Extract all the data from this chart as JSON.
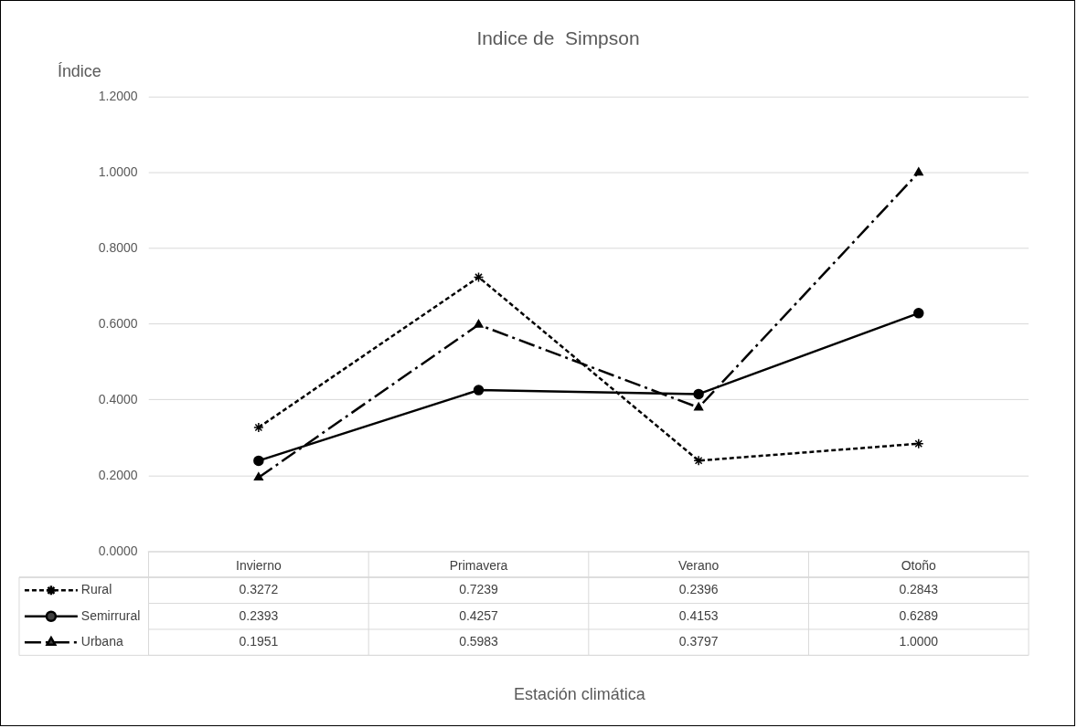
{
  "chart_data": {
    "type": "line",
    "title": "Indice de  Simpson",
    "ylabel": "Índice",
    "annotations": [
      "Estación climática"
    ],
    "categories": [
      "Invierno",
      "Primavera",
      "Verano",
      "Otoño"
    ],
    "series": [
      {
        "name": "Rural",
        "color": "#000000",
        "marker": "cross",
        "line_style": "dotted",
        "values": [
          0.3272,
          0.7239,
          0.2396,
          0.2843
        ],
        "value_labels": [
          "0.3272",
          "0.7239",
          "0.2396",
          "0.2843"
        ]
      },
      {
        "name": "Semirrural",
        "color": "#000000",
        "marker": "circle",
        "line_style": "solid",
        "values": [
          0.2393,
          0.4257,
          0.4153,
          0.6289
        ],
        "value_labels": [
          "0.2393",
          "0.4257",
          "0.4153",
          "0.6289"
        ]
      },
      {
        "name": "Urbana",
        "color": "#000000",
        "marker": "triangle",
        "line_style": "dashed",
        "values": [
          0.1951,
          0.5983,
          0.3797,
          1.0
        ],
        "value_labels": [
          "0.1951",
          "0.5983",
          "0.3797",
          "1.0000"
        ]
      }
    ],
    "ylim": [
      0,
      1.2
    ],
    "yticks": [
      {
        "value": 0,
        "label": "0.0000"
      },
      {
        "value": 0.2,
        "label": "0.2000"
      },
      {
        "value": 0.4,
        "label": "0.4000"
      },
      {
        "value": 0.6,
        "label": "0.6000"
      },
      {
        "value": 0.8,
        "label": "0.8000"
      },
      {
        "value": 1.0,
        "label": "1.0000"
      },
      {
        "value": 1.2,
        "label": "1.2000"
      }
    ],
    "grid": "y",
    "legend": "bottom left"
  }
}
